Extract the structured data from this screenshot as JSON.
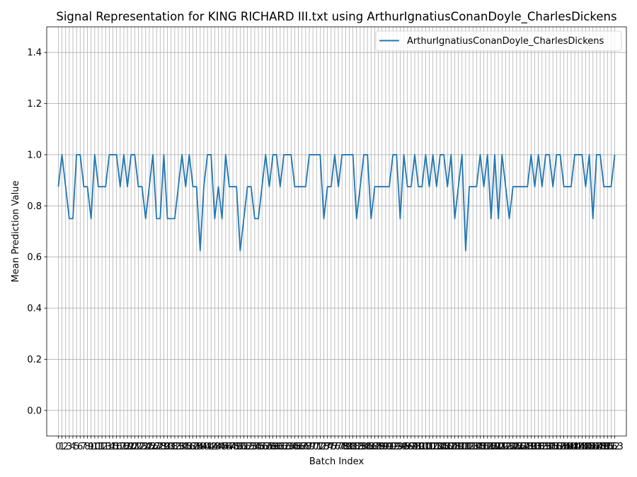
{
  "chart_data": {
    "type": "line",
    "title": "Signal Representation for KING RICHARD III.txt using ArthurIgnatiusConanDoyle_CharlesDickens",
    "xlabel": "Batch Index",
    "ylabel": "Mean Prediction Value",
    "ylim": [
      -0.1,
      1.5
    ],
    "xlim": [
      -3.2,
      156.2
    ],
    "grid": true,
    "legend": "top-right",
    "line_color": "#1f77b4",
    "y_ticks": [
      0.0,
      0.2,
      0.4,
      0.6,
      0.8,
      1.0,
      1.2,
      1.4
    ],
    "y_tick_labels": [
      "0.0",
      "0.2",
      "0.4",
      "0.6",
      "0.8",
      "1.0",
      "1.2",
      "1.4"
    ],
    "x_ticks": [
      0,
      1,
      2,
      3,
      4,
      5,
      6,
      7,
      8,
      9,
      10,
      11,
      12,
      13,
      14,
      15,
      16,
      17,
      18,
      19,
      20,
      21,
      22,
      23,
      24,
      25,
      26,
      27,
      28,
      29,
      30,
      31,
      32,
      33,
      34,
      35,
      36,
      37,
      38,
      39,
      40,
      41,
      42,
      43,
      44,
      45,
      46,
      47,
      48,
      49,
      50,
      51,
      52,
      53,
      54,
      55,
      56,
      57,
      58,
      59,
      60,
      61,
      62,
      63,
      64,
      65,
      66,
      67,
      68,
      69,
      70,
      71,
      72,
      73,
      74,
      75,
      76,
      77,
      78,
      79,
      80,
      81,
      82,
      83,
      84,
      85,
      86,
      87,
      88,
      89,
      90,
      91,
      92,
      93,
      94,
      95,
      96,
      97,
      98,
      99,
      100,
      101,
      102,
      103,
      104,
      105,
      106,
      107,
      108,
      109,
      110,
      111,
      112,
      113,
      114,
      115,
      116,
      117,
      118,
      119,
      120,
      121,
      122,
      123,
      124,
      125,
      126,
      127,
      128,
      129,
      130,
      131,
      132,
      133,
      134,
      135,
      136,
      137,
      138,
      139,
      140,
      141,
      142,
      143,
      144,
      145,
      146,
      147,
      148,
      149,
      150,
      151,
      152,
      153
    ],
    "series": [
      {
        "name": "ArthurIgnatiusConanDoyle_CharlesDickens",
        "values": [
          0.875,
          1.0,
          0.875,
          0.75,
          0.75,
          1.0,
          1.0,
          0.875,
          0.875,
          0.75,
          1.0,
          0.875,
          0.875,
          0.875,
          1.0,
          1.0,
          1.0,
          0.875,
          1.0,
          0.875,
          1.0,
          1.0,
          0.875,
          0.875,
          0.75,
          0.875,
          1.0,
          0.75,
          0.75,
          1.0,
          0.75,
          0.75,
          0.75,
          0.875,
          1.0,
          0.875,
          1.0,
          0.875,
          0.875,
          0.625,
          0.875,
          1.0,
          1.0,
          0.75,
          0.875,
          0.75,
          1.0,
          0.875,
          0.875,
          0.875,
          0.625,
          0.75,
          0.875,
          0.875,
          0.75,
          0.75,
          0.875,
          1.0,
          0.875,
          1.0,
          1.0,
          0.875,
          1.0,
          1.0,
          1.0,
          0.875,
          0.875,
          0.875,
          0.875,
          1.0,
          1.0,
          1.0,
          1.0,
          0.75,
          0.875,
          0.875,
          1.0,
          0.875,
          1.0,
          1.0,
          1.0,
          1.0,
          0.75,
          0.875,
          1.0,
          1.0,
          0.75,
          0.875,
          0.875,
          0.875,
          0.875,
          0.875,
          1.0,
          1.0,
          0.75,
          1.0,
          0.875,
          0.875,
          1.0,
          0.875,
          0.875,
          1.0,
          0.875,
          1.0,
          0.875,
          1.0,
          1.0,
          0.875,
          1.0,
          0.75,
          0.875,
          1.0,
          0.625,
          0.875,
          0.875,
          0.875,
          1.0,
          0.875,
          1.0,
          0.75,
          1.0,
          0.75,
          1.0,
          0.875,
          0.75,
          0.875,
          0.875,
          0.875,
          0.875,
          0.875,
          1.0,
          0.875,
          1.0,
          0.875,
          1.0,
          1.0,
          0.875,
          1.0,
          1.0,
          0.875,
          0.875,
          0.875,
          1.0,
          1.0,
          1.0,
          0.875,
          1.0,
          0.75,
          1.0,
          1.0,
          0.875,
          0.875,
          0.875,
          1.0
        ]
      }
    ]
  }
}
